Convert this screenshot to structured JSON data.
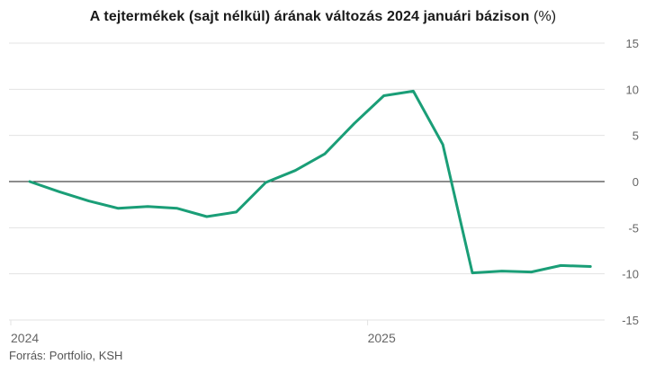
{
  "title": {
    "main": "A tejtermékek (sajt nélkül) árának változás 2024 januári bázison",
    "unit": "(%)"
  },
  "source": "Forrás: Portfolio, KSH",
  "colors": {
    "line": "#1a9e77",
    "grid": "#e3e3e3",
    "zero_line": "#1a1a1a",
    "tick_text": "#666666"
  },
  "chart_data": {
    "type": "line",
    "title": "A tejtermékek (sajt nélkül) árának változás 2024 januári bázison (%)",
    "xlabel": "",
    "ylabel": "",
    "y_axis_position": "right",
    "ylim": [
      -15,
      15
    ],
    "yticks": [
      15,
      10,
      5,
      0,
      -5,
      -10,
      -15
    ],
    "x_tick_labels": [
      {
        "label": "2024",
        "index": 0
      },
      {
        "label": "2025",
        "index": 12
      }
    ],
    "grid": true,
    "legend": "none",
    "series": [
      {
        "values": [
          0,
          -1.1,
          -2.1,
          -2.9,
          -2.7,
          -2.9,
          -3.8,
          -3.3,
          -0.1,
          1.2,
          3.0,
          6.3,
          9.3,
          9.8,
          4.0,
          -9.9,
          -9.7,
          -9.8,
          -9.1,
          -9.2
        ]
      }
    ]
  }
}
